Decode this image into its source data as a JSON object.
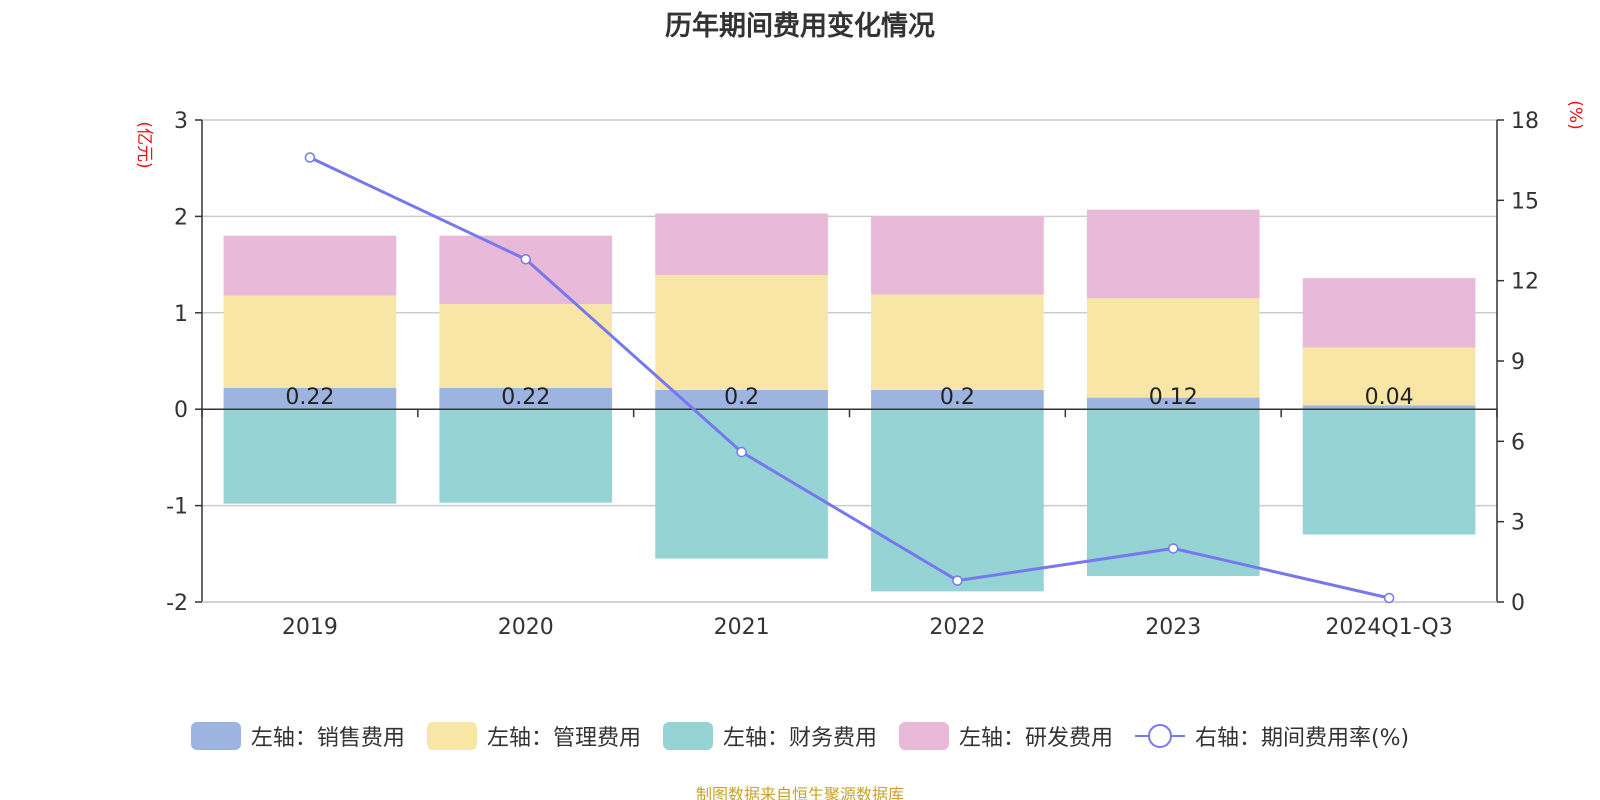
{
  "chart_data": {
    "type": "bar",
    "title": "历年期间费用变化情况",
    "source": "制图数据来自恒生聚源数据库",
    "categories": [
      "2019",
      "2020",
      "2021",
      "2022",
      "2023",
      "2024Q1-Q3"
    ],
    "left_axis": {
      "unit": "(亿元)",
      "ylim": [
        -2,
        3
      ],
      "ticks": [
        -2,
        -1,
        0,
        1,
        2,
        3
      ]
    },
    "right_axis": {
      "unit": "(%)",
      "ylim": [
        0,
        18
      ],
      "ticks": [
        0,
        3,
        6,
        9,
        12,
        15,
        18
      ]
    },
    "stacked": true,
    "series": [
      {
        "name": "左轴：销售费用",
        "axis": "left",
        "color": "#9db4e0",
        "values": [
          0.22,
          0.22,
          0.2,
          0.2,
          0.12,
          0.04
        ],
        "labels": [
          "0.22",
          "0.22",
          "0.2",
          "0.2",
          "0.12",
          "0.04"
        ]
      },
      {
        "name": "左轴：管理费用",
        "axis": "left",
        "color": "#f8e6a7",
        "values": [
          0.96,
          0.87,
          1.19,
          0.99,
          1.03,
          0.6
        ]
      },
      {
        "name": "左轴：财务费用",
        "axis": "left",
        "color": "#96d3d4",
        "values": [
          -0.98,
          -0.97,
          -1.55,
          -1.89,
          -1.73,
          -1.3
        ]
      },
      {
        "name": "左轴：研发费用",
        "axis": "left",
        "color": "#e8b9d8",
        "values": [
          0.62,
          0.71,
          0.64,
          0.81,
          0.92,
          0.72
        ]
      },
      {
        "name": "右轴：期间费用率(%)",
        "axis": "right",
        "type": "line",
        "color": "#7777ee",
        "values": [
          16.6,
          12.8,
          5.6,
          0.8,
          2.0,
          0.15
        ]
      }
    ],
    "grid": true,
    "legend_position": "bottom"
  }
}
